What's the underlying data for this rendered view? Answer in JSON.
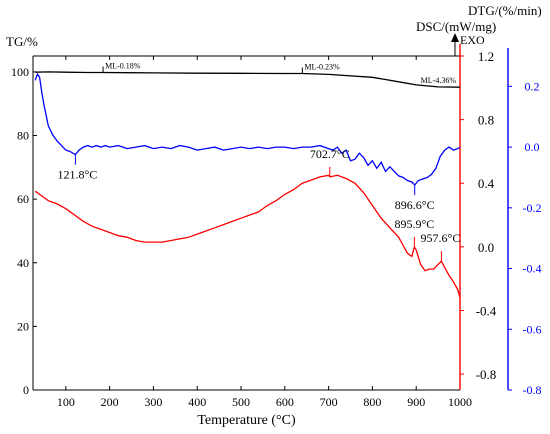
{
  "chart_data": {
    "type": "line",
    "xlabel": "Temperature (°C)",
    "xlim": [
      25,
      1000
    ],
    "x_ticks": [
      100,
      200,
      300,
      400,
      500,
      600,
      700,
      800,
      900,
      1000
    ],
    "axes": {
      "tg": {
        "label": "TG/%",
        "lim": [
          0,
          105
        ],
        "ticks": [
          0,
          20,
          40,
          60,
          80,
          100
        ],
        "color": "#000000"
      },
      "dsc": {
        "label": "DSC/(mW/mg)",
        "exo": "EXO",
        "lim": [
          -0.9,
          1.2
        ],
        "ticks": [
          -0.8,
          -0.4,
          0.0,
          0.4,
          0.8,
          1.2
        ],
        "color": "#ff0000"
      },
      "dtg": {
        "label": "DTG/(%/min)",
        "lim": [
          -0.8,
          0.3
        ],
        "ticks": [
          -0.8,
          -0.6,
          -0.4,
          -0.2,
          0.0,
          0.2
        ],
        "color": "#0000ff"
      }
    },
    "series": [
      {
        "axis": "tg",
        "color": "#000000",
        "x": [
          30,
          60,
          100,
          150,
          185,
          300,
          400,
          500,
          600,
          640,
          700,
          800,
          860,
          900,
          950,
          1000
        ],
        "y": [
          99.9,
          100.0,
          99.9,
          99.8,
          99.8,
          99.7,
          99.6,
          99.55,
          99.5,
          99.5,
          99.2,
          98.3,
          96.9,
          95.9,
          95.3,
          95.2
        ]
      },
      {
        "axis": "dtg",
        "color": "#0000ff",
        "x": [
          30,
          35,
          40,
          45,
          50,
          60,
          70,
          80,
          90,
          100,
          110,
          121.8,
          130,
          140,
          150,
          160,
          170,
          180,
          190,
          200,
          220,
          240,
          260,
          280,
          300,
          320,
          340,
          360,
          380,
          400,
          420,
          440,
          460,
          480,
          500,
          520,
          540,
          560,
          580,
          600,
          620,
          640,
          660,
          680,
          700,
          710,
          720,
          730,
          740,
          750,
          760,
          770,
          780,
          790,
          800,
          810,
          820,
          830,
          840,
          850,
          860,
          870,
          880,
          890,
          896.6,
          905,
          915,
          925,
          935,
          945,
          955,
          965,
          975,
          985,
          995,
          1000
        ],
        "y": [
          0.22,
          0.24,
          0.23,
          0.18,
          0.14,
          0.07,
          0.04,
          0.02,
          0.005,
          -0.01,
          -0.015,
          -0.025,
          -0.01,
          0.0,
          0.005,
          0.0,
          0.005,
          0.0,
          0.005,
          0.0,
          0.005,
          -0.005,
          0.0,
          0.005,
          -0.005,
          0.0,
          -0.005,
          0.005,
          0.0,
          -0.01,
          -0.005,
          0.0,
          -0.01,
          -0.005,
          0.0,
          -0.005,
          0.0,
          -0.005,
          0.0,
          0.0,
          -0.005,
          0.0,
          0.0,
          0.005,
          -0.005,
          -0.01,
          0.0,
          -0.02,
          -0.01,
          -0.045,
          -0.04,
          -0.02,
          -0.035,
          -0.06,
          -0.045,
          -0.07,
          -0.05,
          -0.08,
          -0.065,
          -0.08,
          -0.095,
          -0.1,
          -0.11,
          -0.115,
          -0.125,
          -0.11,
          -0.105,
          -0.1,
          -0.09,
          -0.07,
          -0.03,
          -0.01,
          0.0,
          -0.01,
          -0.005,
          0.0
        ]
      },
      {
        "axis": "dsc",
        "color": "#ff0000",
        "x": [
          30,
          40,
          60,
          80,
          100,
          120,
          140,
          160,
          180,
          200,
          220,
          240,
          260,
          280,
          300,
          320,
          340,
          360,
          380,
          400,
          420,
          440,
          460,
          480,
          500,
          520,
          540,
          560,
          580,
          600,
          620,
          640,
          660,
          680,
          700,
          702.7,
          720,
          740,
          760,
          780,
          800,
          820,
          840,
          860,
          870,
          880,
          890,
          895.9,
          900,
          910,
          920,
          930,
          940,
          950,
          957.6,
          965,
          975,
          985,
          995,
          1000
        ],
        "y": [
          0.35,
          0.33,
          0.29,
          0.27,
          0.24,
          0.2,
          0.16,
          0.13,
          0.11,
          0.09,
          0.07,
          0.06,
          0.04,
          0.03,
          0.03,
          0.03,
          0.04,
          0.05,
          0.06,
          0.08,
          0.1,
          0.12,
          0.14,
          0.16,
          0.18,
          0.2,
          0.22,
          0.26,
          0.29,
          0.33,
          0.36,
          0.4,
          0.42,
          0.44,
          0.45,
          0.44,
          0.45,
          0.43,
          0.4,
          0.34,
          0.26,
          0.18,
          0.12,
          0.06,
          0.01,
          -0.04,
          -0.06,
          0.0,
          -0.02,
          -0.11,
          -0.15,
          -0.14,
          -0.14,
          -0.11,
          -0.09,
          -0.13,
          -0.18,
          -0.22,
          -0.27,
          -0.32
        ]
      }
    ],
    "annotations": [
      {
        "text": "ML-0.18%",
        "axis": "tg",
        "x": 185,
        "y": 99.8
      },
      {
        "text": "ML-0.23%",
        "axis": "tg",
        "x": 640,
        "y": 99.5
      },
      {
        "text": "ML-4.36%",
        "axis": "tg",
        "x": 1000,
        "y": 95.3
      },
      {
        "text": "121.8°C",
        "axis": "dtg",
        "x": 121.8,
        "y": -0.025
      },
      {
        "text": "896.6°C",
        "axis": "dtg",
        "x": 896.6,
        "y": -0.125
      },
      {
        "text": "702.7°C",
        "axis": "dsc",
        "x": 702.7,
        "y": 0.44
      },
      {
        "text": "895.9°C",
        "axis": "dsc",
        "x": 895.9,
        "y": 0.0
      },
      {
        "text": "957.6°C",
        "axis": "dsc",
        "x": 957.6,
        "y": -0.09
      }
    ]
  }
}
